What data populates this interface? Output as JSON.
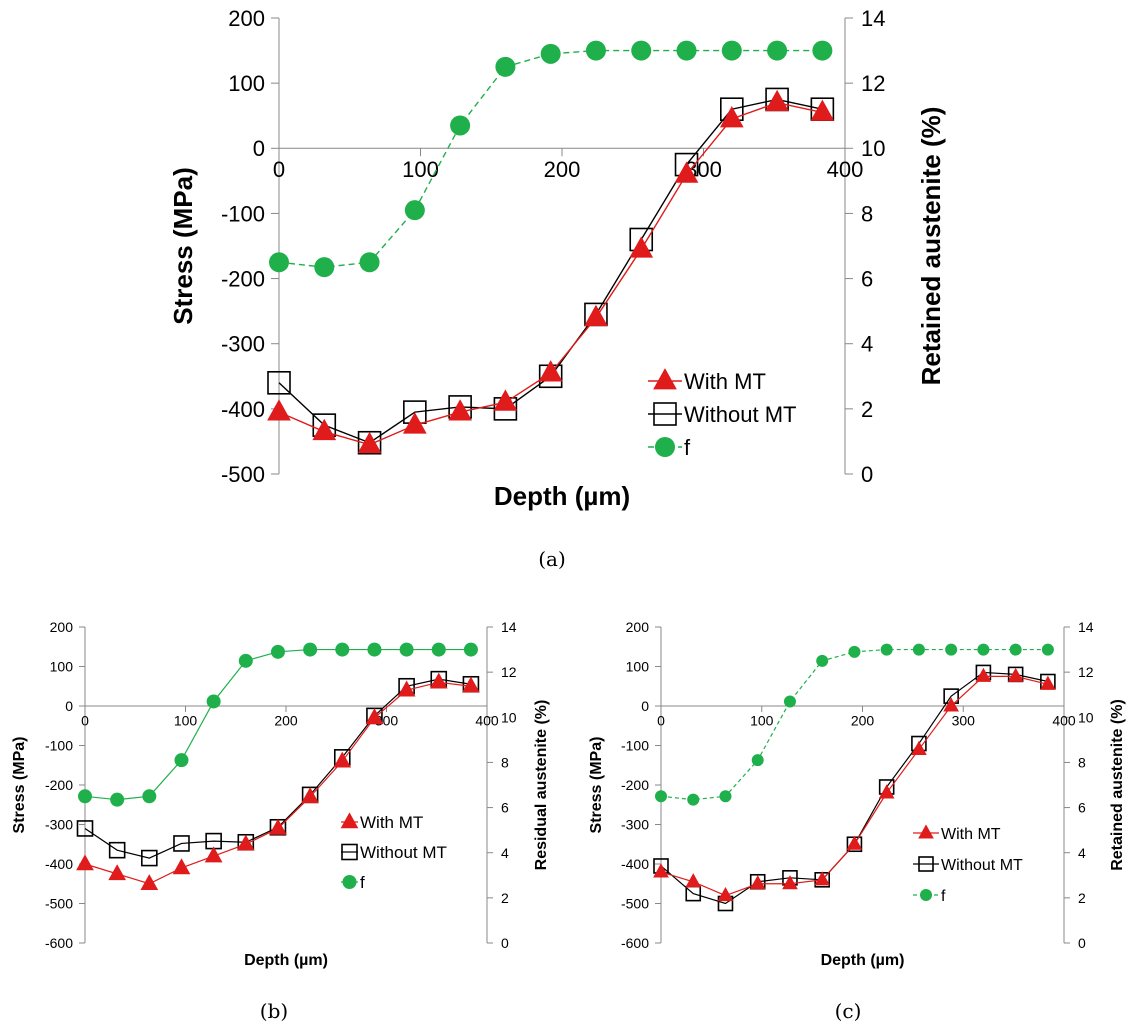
{
  "chart_data": [
    {
      "panel": "(a)",
      "type": "line",
      "caption": "(a)",
      "xlabel": "Depth (µm)",
      "ylabel": "Stress (MPa)",
      "y2label": "Retained austenite (%)",
      "xlim": [
        0,
        400
      ],
      "ylim": [
        -500,
        200
      ],
      "y2lim": [
        0,
        14
      ],
      "x_ticks": [
        0,
        100,
        200,
        300,
        400
      ],
      "y_ticks": [
        -500,
        -400,
        -300,
        -200,
        -100,
        0,
        100,
        200
      ],
      "y2_ticks": [
        0,
        2,
        4,
        6,
        8,
        10,
        12,
        14
      ],
      "grid": false,
      "legend_position": "bottom-right",
      "series": [
        {
          "name": "With MT",
          "axis": "left",
          "color": "#e01b1b",
          "marker": "triangle",
          "line": "solid",
          "x": [
            0,
            32,
            64,
            96,
            128,
            160,
            192,
            224,
            256,
            288,
            320,
            352,
            384
          ],
          "y": [
            -405,
            -435,
            -455,
            -425,
            -405,
            -390,
            -345,
            -260,
            -155,
            -40,
            45,
            70,
            55
          ]
        },
        {
          "name": "Without MT",
          "axis": "left",
          "color": "#000000",
          "marker": "square",
          "line": "solid",
          "x": [
            0,
            32,
            64,
            96,
            128,
            160,
            192,
            224,
            256,
            288,
            320,
            352,
            384
          ],
          "y": [
            -360,
            -425,
            -452,
            -405,
            -397,
            -400,
            -350,
            -255,
            -140,
            -25,
            60,
            75,
            60
          ]
        },
        {
          "name": "f",
          "axis": "right",
          "color": "#1fb04c",
          "marker": "circle",
          "line": "dashed",
          "x": [
            0,
            32,
            64,
            96,
            128,
            160,
            192,
            224,
            256,
            288,
            320,
            352,
            384
          ],
          "y": [
            6.5,
            6.35,
            6.5,
            8.1,
            10.7,
            12.5,
            12.9,
            13.0,
            13.0,
            13.0,
            13.0,
            13.0,
            13.0
          ]
        }
      ]
    },
    {
      "panel": "(b)",
      "type": "line",
      "caption": "(b)",
      "xlabel": "Depth (µm)",
      "ylabel": "Stress (MPa)",
      "y2label": "Residual austenite (%)",
      "xlim": [
        0,
        400
      ],
      "ylim": [
        -600,
        200
      ],
      "y2lim": [
        0,
        14
      ],
      "x_ticks": [
        0,
        100,
        200,
        300,
        400
      ],
      "y_ticks": [
        -600,
        -500,
        -400,
        -300,
        -200,
        -100,
        0,
        100,
        200
      ],
      "y2_ticks": [
        0,
        2,
        4,
        6,
        8,
        10,
        12,
        14
      ],
      "grid": false,
      "legend_position": "bottom-right",
      "series": [
        {
          "name": "With MT",
          "axis": "left",
          "color": "#e01b1b",
          "marker": "triangle",
          "line": "solid",
          "x": [
            0,
            32,
            64,
            96,
            128,
            160,
            192,
            224,
            256,
            288,
            320,
            352,
            384
          ],
          "y": [
            -400,
            -425,
            -450,
            -410,
            -380,
            -350,
            -310,
            -230,
            -140,
            -30,
            40,
            60,
            50
          ]
        },
        {
          "name": "Without MT",
          "axis": "left",
          "color": "#000000",
          "marker": "square",
          "line": "solid",
          "x": [
            0,
            32,
            64,
            96,
            128,
            160,
            192,
            224,
            256,
            288,
            320,
            352,
            384
          ],
          "y": [
            -310,
            -365,
            -385,
            -348,
            -342,
            -345,
            -307,
            -225,
            -130,
            -25,
            50,
            68,
            55
          ]
        },
        {
          "name": "f",
          "axis": "right",
          "color": "#1fb04c",
          "marker": "circle",
          "line": "solid",
          "x": [
            0,
            32,
            64,
            96,
            128,
            160,
            192,
            224,
            256,
            288,
            320,
            352,
            384
          ],
          "y": [
            6.5,
            6.35,
            6.5,
            8.1,
            10.7,
            12.5,
            12.9,
            13.0,
            13.0,
            13.0,
            13.0,
            13.0,
            13.0
          ]
        }
      ]
    },
    {
      "panel": "(c)",
      "type": "line",
      "caption": "(c)",
      "xlabel": "Depth (µm)",
      "ylabel": "Stress (MPa)",
      "y2label": "Retained austenite (%)",
      "xlim": [
        0,
        400
      ],
      "ylim": [
        -600,
        200
      ],
      "y2lim": [
        0,
        14
      ],
      "x_ticks": [
        0,
        100,
        200,
        300,
        400
      ],
      "y_ticks": [
        -600,
        -500,
        -400,
        -300,
        -200,
        -100,
        0,
        100,
        200
      ],
      "y2_ticks": [
        0,
        2,
        4,
        6,
        8,
        10,
        12,
        14
      ],
      "grid": false,
      "legend_position": "bottom-right",
      "series": [
        {
          "name": "With MT",
          "axis": "left",
          "color": "#e01b1b",
          "marker": "triangle",
          "line": "solid",
          "x": [
            0,
            32,
            64,
            96,
            128,
            160,
            192,
            224,
            256,
            288,
            320,
            352,
            384
          ],
          "y": [
            -420,
            -445,
            -480,
            -450,
            -450,
            -440,
            -350,
            -220,
            -110,
            0,
            75,
            75,
            55
          ]
        },
        {
          "name": "Without MT",
          "axis": "left",
          "color": "#000000",
          "marker": "square",
          "line": "solid",
          "x": [
            0,
            32,
            64,
            96,
            128,
            160,
            192,
            224,
            256,
            288,
            320,
            352,
            384
          ],
          "y": [
            -405,
            -475,
            -500,
            -445,
            -435,
            -440,
            -350,
            -205,
            -95,
            25,
            85,
            80,
            62
          ]
        },
        {
          "name": "f",
          "axis": "right",
          "color": "#1fb04c",
          "marker": "circle",
          "line": "dashed",
          "x": [
            0,
            32,
            64,
            96,
            128,
            160,
            192,
            224,
            256,
            288,
            320,
            352,
            384
          ],
          "y": [
            6.5,
            6.35,
            6.5,
            8.1,
            10.7,
            12.5,
            12.9,
            13.0,
            13.0,
            13.0,
            13.0,
            13.0,
            13.0
          ]
        }
      ]
    }
  ]
}
